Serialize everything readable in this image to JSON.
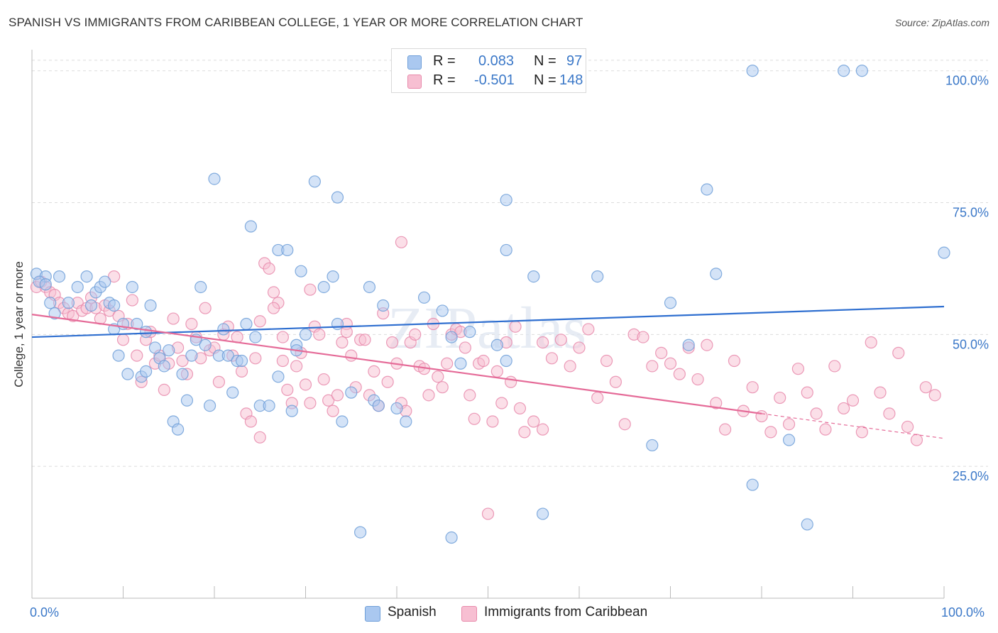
{
  "title": "SPANISH VS IMMIGRANTS FROM CARIBBEAN COLLEGE, 1 YEAR OR MORE CORRELATION CHART",
  "source": "Source: ZipAtlas.com",
  "watermark": "ZIPatlas",
  "colors": {
    "blue_fill": "#aac8f0",
    "blue_stroke": "#6f9fd8",
    "blue_line": "#2f6fd0",
    "pink_fill": "#f7bfd2",
    "pink_stroke": "#e88aab",
    "pink_line": "#e56b98",
    "axis_text": "#3b78c8",
    "grid": "#dcdcdc"
  },
  "legend_top": {
    "rows": [
      {
        "r_label": "R =",
        "r_value": "0.083",
        "n_label": "N =",
        "n_value": "97"
      },
      {
        "r_label": "R =",
        "r_value": "-0.501",
        "n_label": "N =",
        "n_value": "148"
      }
    ]
  },
  "legend_bottom": {
    "items": [
      "Spanish",
      "Immigrants from Caribbean"
    ]
  },
  "axes": {
    "x_min_label": "0.0%",
    "x_max_label": "100.0%",
    "y_label": "College, 1 year or more",
    "y_tick_labels": [
      "100.0%",
      "75.0%",
      "50.0%",
      "25.0%"
    ]
  },
  "chart_data": {
    "type": "scatter",
    "x_range": [
      0,
      100
    ],
    "y_range": [
      0,
      104
    ],
    "y_ticks": [
      25,
      50,
      75,
      100
    ],
    "grid": "horizontal dashed",
    "legend_placement": "top-center",
    "series": [
      {
        "name": "Spanish",
        "trend": {
          "x0": 0,
          "y0": 49.5,
          "x1": 100,
          "y1": 55.3
        },
        "points": [
          [
            0.5,
            61.5
          ],
          [
            1.5,
            61
          ],
          [
            0.8,
            60
          ],
          [
            1.5,
            59.5
          ],
          [
            3,
            61
          ],
          [
            2,
            56
          ],
          [
            2.5,
            54
          ],
          [
            4,
            56
          ],
          [
            5,
            59
          ],
          [
            6,
            61
          ],
          [
            6.5,
            55.5
          ],
          [
            7,
            58
          ],
          [
            7.5,
            59
          ],
          [
            8,
            60
          ],
          [
            8.5,
            56
          ],
          [
            9,
            55.5
          ],
          [
            9,
            51
          ],
          [
            9.5,
            46
          ],
          [
            10,
            52
          ],
          [
            10.5,
            42.5
          ],
          [
            11,
            59
          ],
          [
            11.5,
            52
          ],
          [
            12,
            42
          ],
          [
            12.5,
            43
          ],
          [
            12.5,
            50.5
          ],
          [
            13,
            55.5
          ],
          [
            13.5,
            47.5
          ],
          [
            14,
            45.5
          ],
          [
            14.5,
            44
          ],
          [
            15,
            47
          ],
          [
            15.5,
            33.5
          ],
          [
            16,
            32
          ],
          [
            16.5,
            42.5
          ],
          [
            17,
            37.5
          ],
          [
            17.5,
            46
          ],
          [
            18,
            49
          ],
          [
            18.5,
            59
          ],
          [
            19,
            48
          ],
          [
            19.5,
            36.5
          ],
          [
            20,
            79.5
          ],
          [
            20.5,
            46
          ],
          [
            21,
            51
          ],
          [
            21.5,
            46
          ],
          [
            22,
            39
          ],
          [
            22.5,
            45
          ],
          [
            23,
            45
          ],
          [
            23.5,
            52
          ],
          [
            24.5,
            49.5
          ],
          [
            24,
            70.5
          ],
          [
            25,
            36.5
          ],
          [
            26,
            36.5
          ],
          [
            27,
            42
          ],
          [
            27,
            66
          ],
          [
            28,
            66
          ],
          [
            28.5,
            35.5
          ],
          [
            29,
            48
          ],
          [
            29,
            47
          ],
          [
            29.5,
            62
          ],
          [
            30,
            50
          ],
          [
            32,
            59
          ],
          [
            33,
            61
          ],
          [
            31,
            79
          ],
          [
            33.5,
            76
          ],
          [
            33.5,
            52
          ],
          [
            34,
            33.5
          ],
          [
            35,
            39
          ],
          [
            37,
            59
          ],
          [
            37.5,
            37.5
          ],
          [
            38.5,
            55.5
          ],
          [
            38,
            36.5
          ],
          [
            40,
            36
          ],
          [
            41,
            33.5
          ],
          [
            43,
            57
          ],
          [
            45,
            54.5
          ],
          [
            46,
            49.5
          ],
          [
            46,
            11.5
          ],
          [
            47,
            44.5
          ],
          [
            48,
            50.5
          ],
          [
            51,
            48
          ],
          [
            52,
            45
          ],
          [
            52,
            75.5
          ],
          [
            52,
            66
          ],
          [
            55,
            61
          ],
          [
            56,
            16
          ],
          [
            62,
            61
          ],
          [
            70,
            56
          ],
          [
            72,
            48
          ],
          [
            74,
            77.5
          ],
          [
            75,
            61.5
          ],
          [
            68,
            29
          ],
          [
            79,
            21.5
          ],
          [
            79,
            100
          ],
          [
            83,
            30
          ],
          [
            85,
            14
          ],
          [
            89,
            100
          ],
          [
            91,
            100
          ],
          [
            100,
            65.5
          ],
          [
            36,
            12.5
          ]
        ]
      },
      {
        "name": "Immigrants from Caribbean",
        "trend": {
          "x0": 0,
          "y0": 53.8,
          "x1": 80,
          "y1": 35,
          "dash_to": {
            "x": 100,
            "y": 30.3
          }
        },
        "points": [
          [
            0.5,
            59
          ],
          [
            1,
            60
          ],
          [
            1.5,
            59
          ],
          [
            2,
            58
          ],
          [
            2.5,
            57.5
          ],
          [
            3,
            56
          ],
          [
            3.5,
            55
          ],
          [
            4,
            54
          ],
          [
            4.5,
            53.5
          ],
          [
            5,
            56
          ],
          [
            5.5,
            54.5
          ],
          [
            6,
            55
          ],
          [
            6.5,
            57
          ],
          [
            7,
            55
          ],
          [
            7.5,
            53
          ],
          [
            8,
            55.5
          ],
          [
            8.5,
            54.5
          ],
          [
            9,
            61
          ],
          [
            9.5,
            53.5
          ],
          [
            10,
            49
          ],
          [
            10.5,
            52
          ],
          [
            11,
            56.5
          ],
          [
            11.5,
            46
          ],
          [
            12,
            41
          ],
          [
            12.5,
            49
          ],
          [
            13,
            50.5
          ],
          [
            13.5,
            44.5
          ],
          [
            14,
            46
          ],
          [
            14.5,
            39.5
          ],
          [
            15,
            44.5
          ],
          [
            15.5,
            53
          ],
          [
            16,
            47.5
          ],
          [
            16.5,
            45
          ],
          [
            17,
            42.5
          ],
          [
            17.5,
            52
          ],
          [
            18,
            49.5
          ],
          [
            18.5,
            45.5
          ],
          [
            19,
            55
          ],
          [
            19.5,
            47
          ],
          [
            20,
            47.5
          ],
          [
            20.5,
            41
          ],
          [
            21,
            50
          ],
          [
            21.5,
            51.5
          ],
          [
            22,
            46
          ],
          [
            22.5,
            49.5
          ],
          [
            23,
            43
          ],
          [
            23.5,
            35
          ],
          [
            24,
            33.5
          ],
          [
            24.5,
            45.5
          ],
          [
            25,
            30.5
          ],
          [
            25.5,
            63.5
          ],
          [
            26,
            62.5
          ],
          [
            26.5,
            58
          ],
          [
            27,
            56
          ],
          [
            27.5,
            49.5
          ],
          [
            28,
            39.5
          ],
          [
            28.5,
            37
          ],
          [
            29,
            44
          ],
          [
            29.5,
            46.5
          ],
          [
            30,
            40.5
          ],
          [
            30.5,
            37
          ],
          [
            31,
            51.5
          ],
          [
            31.5,
            50
          ],
          [
            32,
            41.5
          ],
          [
            32.5,
            37.5
          ],
          [
            33,
            35.5
          ],
          [
            33.5,
            38.5
          ],
          [
            34,
            48.5
          ],
          [
            34.5,
            52
          ],
          [
            35,
            46
          ],
          [
            35.5,
            40
          ],
          [
            36,
            49
          ],
          [
            36.5,
            49
          ],
          [
            37,
            38.5
          ],
          [
            37.5,
            43
          ],
          [
            38,
            36.5
          ],
          [
            38.5,
            54
          ],
          [
            39,
            41
          ],
          [
            39.5,
            48.5
          ],
          [
            40,
            44.5
          ],
          [
            40.5,
            37
          ],
          [
            41,
            35.5
          ],
          [
            41.5,
            48.5
          ],
          [
            42,
            50
          ],
          [
            42.5,
            44
          ],
          [
            43,
            43.5
          ],
          [
            43.5,
            38.5
          ],
          [
            44,
            52
          ],
          [
            44.5,
            42
          ],
          [
            45,
            40
          ],
          [
            45.5,
            44.5
          ],
          [
            46,
            50
          ],
          [
            46.5,
            51
          ],
          [
            47,
            50.5
          ],
          [
            47.5,
            47.5
          ],
          [
            48,
            38.5
          ],
          [
            48.5,
            34
          ],
          [
            49,
            44.5
          ],
          [
            49.5,
            45
          ],
          [
            50,
            16
          ],
          [
            50.5,
            33.5
          ],
          [
            51,
            43
          ],
          [
            51.5,
            37
          ],
          [
            52,
            48.5
          ],
          [
            52.5,
            41
          ],
          [
            53,
            51.5
          ],
          [
            53.5,
            36
          ],
          [
            54,
            31.5
          ],
          [
            55,
            33.5
          ],
          [
            56,
            32
          ],
          [
            56,
            48.5
          ],
          [
            57,
            45.5
          ],
          [
            58,
            49
          ],
          [
            59,
            44
          ],
          [
            60,
            47.5
          ],
          [
            61,
            51
          ],
          [
            62,
            38
          ],
          [
            63,
            45
          ],
          [
            64,
            41
          ],
          [
            65,
            33
          ],
          [
            66,
            50
          ],
          [
            67,
            49.5
          ],
          [
            68,
            44
          ],
          [
            69,
            46.5
          ],
          [
            70,
            44.5
          ],
          [
            71,
            42.5
          ],
          [
            72,
            47.5
          ],
          [
            73,
            41.5
          ],
          [
            74,
            48
          ],
          [
            75,
            37
          ],
          [
            76,
            32
          ],
          [
            77,
            45
          ],
          [
            78,
            35.5
          ],
          [
            79,
            40
          ],
          [
            80,
            34.5
          ],
          [
            81,
            31.5
          ],
          [
            82,
            38
          ],
          [
            83,
            33
          ],
          [
            84,
            43.5
          ],
          [
            85,
            39
          ],
          [
            86,
            35
          ],
          [
            87,
            32
          ],
          [
            88,
            44
          ],
          [
            89,
            36
          ],
          [
            90,
            37.5
          ],
          [
            91,
            31.5
          ],
          [
            92,
            48.5
          ],
          [
            93,
            39
          ],
          [
            94,
            35
          ],
          [
            95,
            46.5
          ],
          [
            96,
            32.5
          ],
          [
            97,
            30
          ],
          [
            98,
            40
          ],
          [
            99,
            38.5
          ],
          [
            40.5,
            67.5
          ],
          [
            30.5,
            58.5
          ],
          [
            25,
            52.5
          ],
          [
            26.5,
            55
          ],
          [
            34.5,
            50.5
          ],
          [
            27.5,
            45
          ]
        ]
      }
    ]
  }
}
